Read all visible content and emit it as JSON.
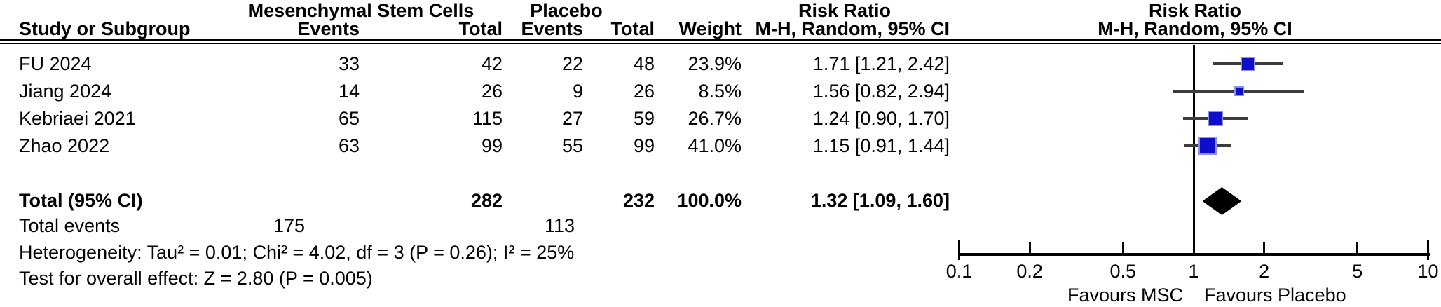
{
  "title_row": {
    "group1": "Mesenchymal Stem Cells",
    "group2": "Placebo",
    "risk_ratio_left": "Risk Ratio",
    "risk_ratio_right": "Risk Ratio"
  },
  "columns": {
    "study": "Study or Subgroup",
    "events_msc": "Events",
    "total_msc": "Total",
    "events_placebo": "Events",
    "total_placebo": "Total",
    "weight": "Weight",
    "ci_left": "M-H, Random, 95% CI",
    "ci_right": "M-H, Random, 95% CI"
  },
  "studies": [
    {
      "name": "FU 2024",
      "msc_events": "33",
      "msc_total": "42",
      "pbo_events": "22",
      "pbo_total": "48",
      "weight": "23.9%",
      "rr_ci": "1.71 [1.21, 2.42]"
    },
    {
      "name": "Jiang 2024",
      "msc_events": "14",
      "msc_total": "26",
      "pbo_events": "9",
      "pbo_total": "26",
      "weight": "8.5%",
      "rr_ci": "1.56 [0.82, 2.94]"
    },
    {
      "name": "Kebriaei 2021",
      "msc_events": "65",
      "msc_total": "115",
      "pbo_events": "27",
      "pbo_total": "59",
      "weight": "26.7%",
      "rr_ci": "1.24 [0.90, 1.70]"
    },
    {
      "name": "Zhao 2022",
      "msc_events": "63",
      "msc_total": "99",
      "pbo_events": "55",
      "pbo_total": "99",
      "weight": "41.0%",
      "rr_ci": "1.15 [0.91, 1.44]"
    }
  ],
  "total": {
    "label": "Total (95% CI)",
    "msc_total": "282",
    "pbo_total": "232",
    "weight": "100.0%",
    "rr_ci": "1.32 [1.09, 1.60]",
    "events_label": "Total events",
    "msc_events": "175",
    "pbo_events": "113"
  },
  "footnotes": {
    "heterogeneity": "Heterogeneity: Tau² = 0.01; Chi² = 4.02, df = 3 (P = 0.26); I² = 25%",
    "overall_effect": "Test for overall effect: Z = 2.80 (P = 0.005)"
  },
  "axis": {
    "favours_left": "Favours MSC",
    "favours_right": "Favours Placebo"
  },
  "chart_data": {
    "type": "forest",
    "effect_measure": "Risk Ratio, M-H, Random, 95% CI",
    "x_scale": "log10",
    "x_ticks": [
      0.1,
      0.2,
      0.5,
      1,
      2,
      5,
      10
    ],
    "x_range": [
      0.1,
      10
    ],
    "null_value": 1,
    "studies": [
      {
        "name": "FU 2024",
        "rr": 1.71,
        "ci_low": 1.21,
        "ci_high": 2.42,
        "weight_pct": 23.9
      },
      {
        "name": "Jiang 2024",
        "rr": 1.56,
        "ci_low": 0.82,
        "ci_high": 2.94,
        "weight_pct": 8.5
      },
      {
        "name": "Kebriaei 2021",
        "rr": 1.24,
        "ci_low": 0.9,
        "ci_high": 1.7,
        "weight_pct": 26.7
      },
      {
        "name": "Zhao 2022",
        "rr": 1.15,
        "ci_low": 0.91,
        "ci_high": 1.44,
        "weight_pct": 41.0
      }
    ],
    "total": {
      "rr": 1.32,
      "ci_low": 1.09,
      "ci_high": 1.6
    },
    "colors": {
      "square": "#0d0dcb",
      "square_border": "#8e8eec",
      "ci_line": "#3c3c3c",
      "diamond": "#000000",
      "axis": "#000000"
    }
  }
}
